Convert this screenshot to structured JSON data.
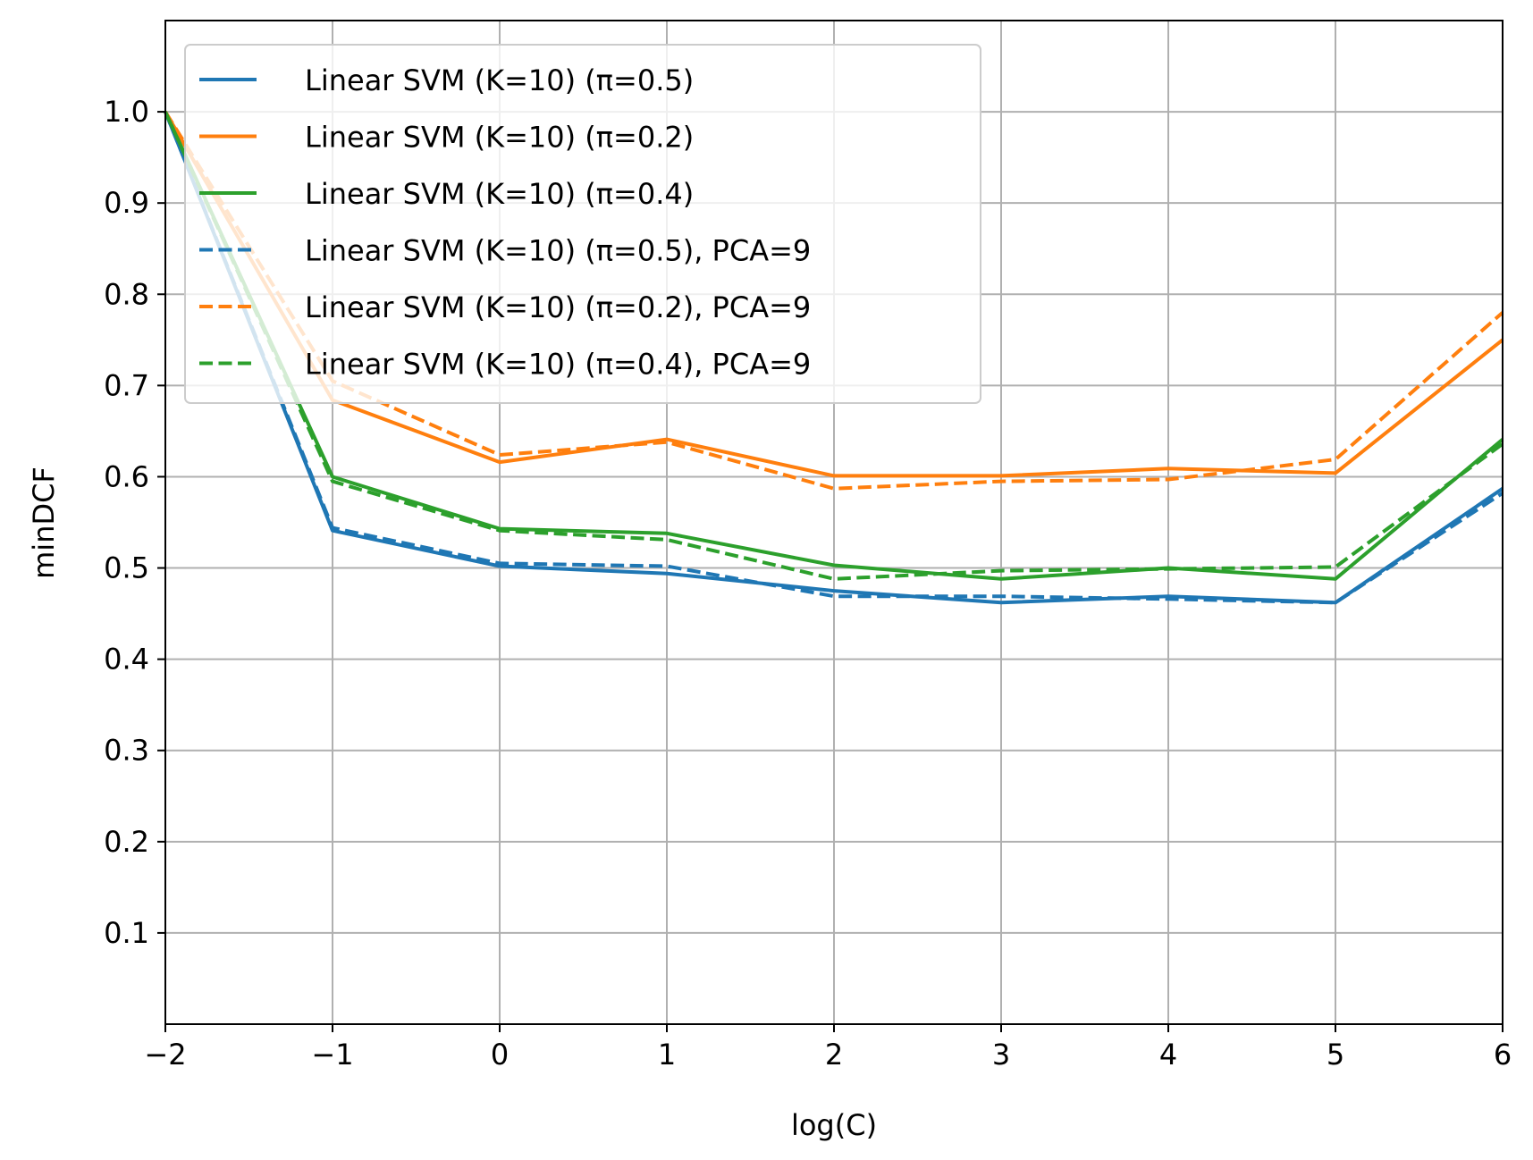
{
  "chart_data": {
    "type": "line",
    "xlabel": "log(C)",
    "ylabel": "minDCF",
    "xlim": [
      -2,
      6
    ],
    "ylim": [
      0,
      1.1
    ],
    "xticks": [
      -2,
      -1,
      0,
      1,
      2,
      3,
      4,
      5,
      6
    ],
    "xtick_labels": [
      "−2",
      "−1",
      "0",
      "1",
      "2",
      "3",
      "4",
      "5",
      "6"
    ],
    "yticks": [
      0.1,
      0.2,
      0.3,
      0.4,
      0.5,
      0.6,
      0.7,
      0.8,
      0.9,
      1.0
    ],
    "ytick_labels": [
      "0.1",
      "0.2",
      "0.3",
      "0.4",
      "0.5",
      "0.6",
      "0.7",
      "0.8",
      "0.9",
      "1.0"
    ],
    "grid": true,
    "legend_position": "top-left",
    "x": [
      -2,
      -1,
      0,
      1,
      2,
      3,
      4,
      5,
      6
    ],
    "series": [
      {
        "name": "Linear SVM (K=10) (π=0.5)",
        "color": "#1f77b4",
        "dash": "solid",
        "values": [
          1.0,
          0.541,
          0.502,
          0.494,
          0.475,
          0.462,
          0.469,
          0.462,
          0.587
        ]
      },
      {
        "name": "Linear SVM (K=10) (π=0.2)",
        "color": "#ff7f0e",
        "dash": "solid",
        "values": [
          1.0,
          0.684,
          0.616,
          0.641,
          0.601,
          0.601,
          0.609,
          0.604,
          0.75
        ]
      },
      {
        "name": "Linear SVM (K=10) (π=0.4)",
        "color": "#2ca02c",
        "dash": "solid",
        "values": [
          1.0,
          0.6,
          0.543,
          0.538,
          0.503,
          0.488,
          0.5,
          0.488,
          0.641
        ]
      },
      {
        "name": "Linear SVM (K=10) (π=0.5), PCA=9",
        "color": "#1f77b4",
        "dash": "dashed",
        "values": [
          1.0,
          0.544,
          0.505,
          0.502,
          0.469,
          0.469,
          0.466,
          0.462,
          0.582
        ]
      },
      {
        "name": "Linear SVM (K=10) (π=0.2), PCA=9",
        "color": "#ff7f0e",
        "dash": "dashed",
        "values": [
          1.0,
          0.705,
          0.624,
          0.638,
          0.587,
          0.595,
          0.597,
          0.619,
          0.78
        ]
      },
      {
        "name": "Linear SVM (K=10) (π=0.4), PCA=9",
        "color": "#2ca02c",
        "dash": "dashed",
        "values": [
          1.0,
          0.595,
          0.541,
          0.531,
          0.488,
          0.497,
          0.499,
          0.501,
          0.636
        ]
      }
    ]
  }
}
